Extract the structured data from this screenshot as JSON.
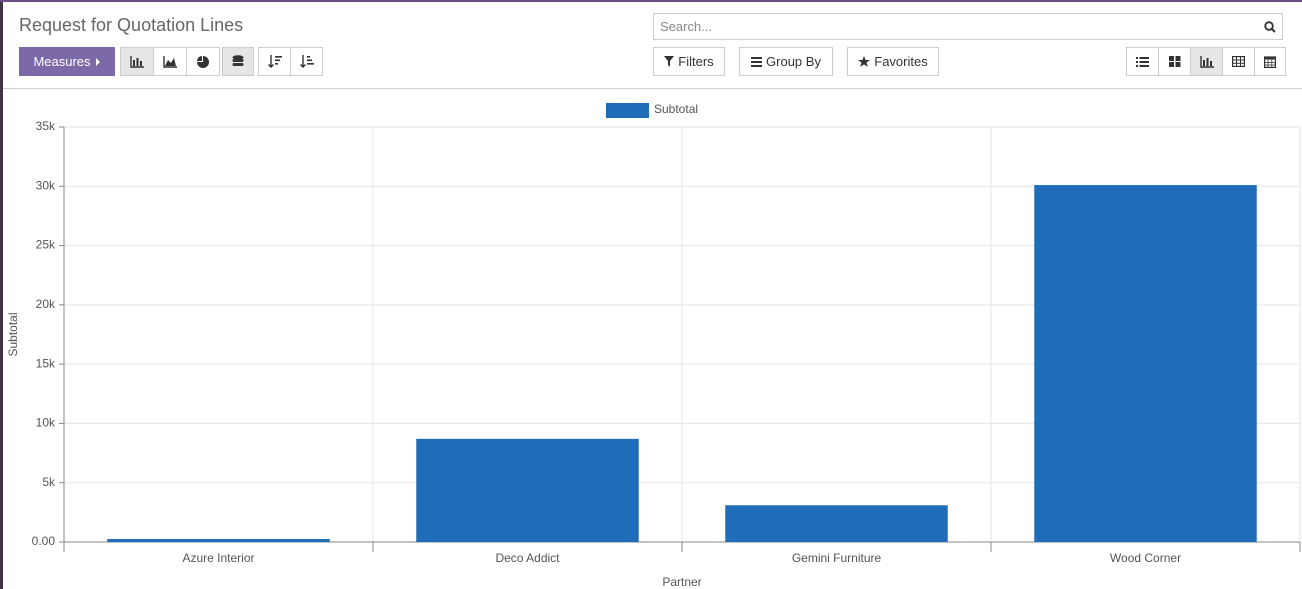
{
  "header": {
    "title": "Request for Quotation Lines",
    "search_placeholder": "Search...",
    "measures": "Measures",
    "filters": "Filters",
    "group_by": "Group By",
    "favorites": "Favorites"
  },
  "chart_data": {
    "type": "bar",
    "categories": [
      "Azure Interior",
      "Deco Addict",
      "Gemini Furniture",
      "Wood Corner"
    ],
    "series": [
      {
        "name": "Subtotal",
        "color": "#1f6cb8",
        "values": [
          250,
          8700,
          3100,
          30100
        ]
      }
    ],
    "xlabel": "Partner",
    "ylabel": "Subtotal",
    "ylim": [
      0,
      35000
    ],
    "yticks": [
      {
        "value": 0,
        "label": "0.00"
      },
      {
        "value": 5000,
        "label": "5k"
      },
      {
        "value": 10000,
        "label": "10k"
      },
      {
        "value": 15000,
        "label": "15k"
      },
      {
        "value": 20000,
        "label": "20k"
      },
      {
        "value": 25000,
        "label": "25k"
      },
      {
        "value": 30000,
        "label": "30k"
      },
      {
        "value": 35000,
        "label": "35k"
      }
    ],
    "grid": true,
    "legend": "top"
  }
}
